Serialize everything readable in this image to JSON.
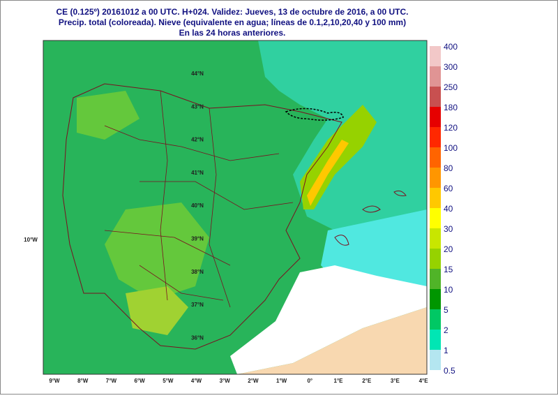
{
  "header": {
    "lines": [
      "CE (0.125º) 20161012 a 00 UTC.  H+024. Validez: Jueves, 13 de octubre de 2016,  a  00 UTC.",
      "Precip. total (coloreada). Nieve (equivalente en agua; líneas de 0.1,2,10,20,40 y 100 mm)",
      "En las 24 horas anteriores."
    ]
  },
  "map": {
    "lat_labels": [
      "44°N",
      "43°N",
      "42°N",
      "41°N",
      "40°N",
      "39°N",
      "38°N",
      "37°N",
      "36°N"
    ],
    "lon_labels": [
      "9°W",
      "8°W",
      "7°W",
      "6°W",
      "5°W",
      "4°W",
      "3°W",
      "2°W",
      "1°W",
      "0°",
      "1°E",
      "2°E",
      "3°E",
      "4°E"
    ],
    "side_label": "10°W"
  },
  "colorbar": {
    "labels": [
      "400",
      "300",
      "250",
      "180",
      "120",
      "100",
      "80",
      "60",
      "40",
      "30",
      "20",
      "15",
      "10",
      "5",
      "2",
      "1",
      "0.5"
    ],
    "colors": [
      "#f2c8c8",
      "#e09494",
      "#c85050",
      "#e60000",
      "#ff2800",
      "#ff6400",
      "#ff9600",
      "#ffc800",
      "#ffff00",
      "#c8e600",
      "#96d200",
      "#50b428",
      "#009600",
      "#00c864",
      "#00e6b4",
      "#b4e6f0"
    ]
  }
}
